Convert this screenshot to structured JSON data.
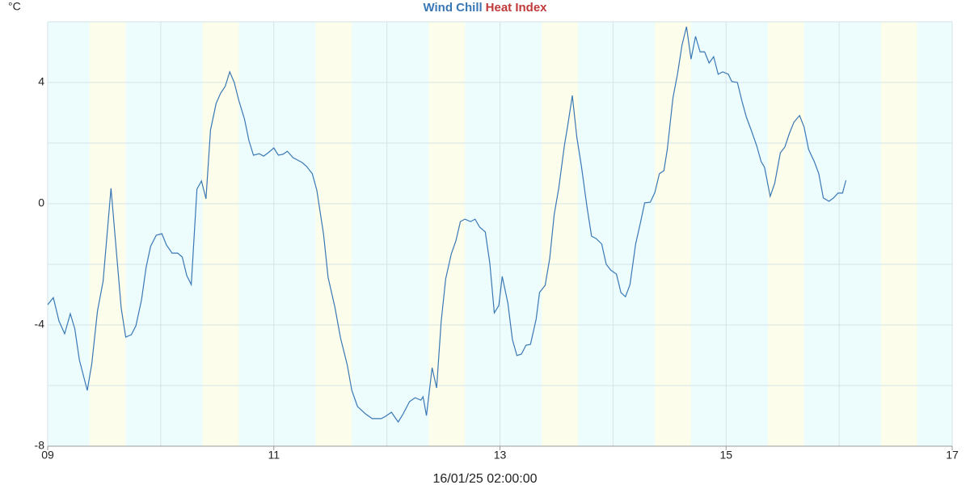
{
  "chart_data": {
    "type": "line",
    "legend": [
      {
        "name": "Wind Chill",
        "color": "#3a78b5"
      },
      {
        "name": "Heat Index",
        "color": "#c0393b"
      }
    ],
    "y_unit": "°C",
    "x_label": "16/01/25 02:00:00",
    "xlim": [
      9,
      17
    ],
    "xticks": [
      {
        "value": 9,
        "label": "09"
      },
      11,
      13,
      15,
      17
    ],
    "x_minor_grid": [
      10,
      12,
      14,
      16
    ],
    "ylim": [
      -8,
      6
    ],
    "yticks": [
      -8,
      -4,
      0,
      4
    ],
    "y_minor_grid": [
      -6,
      -2,
      2,
      6
    ],
    "grid": true,
    "background": "#edfdfd",
    "bands": [
      {
        "start": 9.37,
        "end": 9.69
      },
      {
        "start": 10.37,
        "end": 10.69
      },
      {
        "start": 11.37,
        "end": 11.69
      },
      {
        "start": 12.37,
        "end": 12.69
      },
      {
        "start": 13.37,
        "end": 13.69
      },
      {
        "start": 14.37,
        "end": 14.69
      },
      {
        "start": 15.37,
        "end": 15.69
      },
      {
        "start": 16.37,
        "end": 16.69
      }
    ],
    "band_color": "#fdfdeb",
    "x": [
      9.0,
      9.05,
      9.1,
      9.15,
      9.2,
      9.24,
      9.28,
      9.35,
      9.39,
      9.44,
      9.49,
      9.56,
      9.65,
      9.69,
      9.74,
      9.78,
      9.83,
      9.87,
      9.91,
      9.96,
      10.01,
      10.05,
      10.1,
      10.15,
      10.19,
      10.23,
      10.27,
      10.32,
      10.36,
      10.4,
      10.44,
      10.49,
      10.53,
      10.57,
      10.61,
      10.65,
      10.69,
      10.74,
      10.78,
      10.82,
      10.87,
      10.91,
      10.95,
      11.0,
      11.04,
      11.08,
      11.12,
      11.17,
      11.21,
      11.25,
      11.29,
      11.34,
      11.38,
      11.44,
      11.48,
      11.54,
      11.59,
      11.65,
      11.69,
      11.74,
      11.81,
      11.87,
      11.95,
      11.99,
      12.04,
      12.1,
      12.14,
      12.2,
      12.25,
      12.3,
      12.32,
      12.35,
      12.4,
      12.44,
      12.48,
      12.52,
      12.57,
      12.61,
      12.65,
      12.69,
      12.74,
      12.78,
      12.82,
      12.87,
      12.91,
      12.95,
      12.99,
      13.02,
      13.07,
      13.11,
      13.15,
      13.19,
      13.23,
      13.27,
      13.32,
      13.35,
      13.4,
      13.44,
      13.48,
      13.52,
      13.57,
      13.6,
      13.64,
      13.68,
      13.72,
      13.77,
      13.81,
      13.85,
      13.9,
      13.94,
      13.98,
      14.03,
      14.07,
      14.11,
      14.15,
      14.2,
      14.24,
      14.28,
      14.33,
      14.37,
      14.41,
      14.45,
      14.48,
      14.53,
      14.57,
      14.61,
      14.65,
      14.69,
      14.73,
      14.77,
      14.81,
      14.85,
      14.89,
      14.93,
      14.97,
      15.02,
      15.05,
      15.1,
      15.14,
      15.18,
      15.22,
      15.27,
      15.31,
      15.34,
      15.39,
      15.43,
      15.48,
      15.52,
      15.56,
      15.6,
      15.65,
      15.69,
      15.73,
      15.78,
      15.82,
      15.86,
      15.91,
      15.95,
      15.99,
      16.03,
      16.06
    ],
    "series": [
      {
        "name": "Wind Chill",
        "color": "#3a78b5",
        "values": [
          -3.33,
          -3.1,
          -3.87,
          -4.29,
          -3.63,
          -4.13,
          -5.15,
          -6.16,
          -5.28,
          -3.55,
          -2.56,
          0.51,
          -3.44,
          -4.4,
          -4.32,
          -4.03,
          -3.17,
          -2.11,
          -1.41,
          -1.04,
          -0.99,
          -1.36,
          -1.63,
          -1.63,
          -1.76,
          -2.37,
          -2.67,
          0.48,
          0.75,
          0.16,
          2.43,
          3.31,
          3.65,
          3.87,
          4.35,
          4,
          3.41,
          2.8,
          2.08,
          1.6,
          1.65,
          1.57,
          1.68,
          1.84,
          1.6,
          1.63,
          1.73,
          1.52,
          1.44,
          1.36,
          1.23,
          0.99,
          0.45,
          -1.01,
          -2.43,
          -3.41,
          -4.43,
          -5.33,
          -6.16,
          -6.69,
          -6.93,
          -7.09,
          -7.09,
          -7.01,
          -6.88,
          -7.2,
          -6.96,
          -6.53,
          -6.4,
          -6.48,
          -6.37,
          -6.99,
          -5.41,
          -6.08,
          -3.89,
          -2.48,
          -1.65,
          -1.23,
          -0.59,
          -0.51,
          -0.59,
          -0.51,
          -0.77,
          -0.93,
          -1.95,
          -3.6,
          -3.36,
          -2.4,
          -3.28,
          -4.48,
          -5.01,
          -4.96,
          -4.67,
          -4.64,
          -3.81,
          -2.93,
          -2.69,
          -1.81,
          -0.35,
          0.51,
          1.92,
          2.59,
          3.57,
          2.19,
          1.25,
          -0.11,
          -1.07,
          -1.15,
          -1.33,
          -2,
          -2.19,
          -2.32,
          -2.93,
          -3.07,
          -2.67,
          -1.33,
          -0.67,
          0.03,
          0.05,
          0.37,
          0.99,
          1.09,
          1.79,
          3.49,
          4.27,
          5.23,
          5.84,
          4.77,
          5.52,
          5.01,
          5.01,
          4.64,
          4.85,
          4.27,
          4.35,
          4.27,
          4.03,
          4,
          3.39,
          2.85,
          2.45,
          1.92,
          1.39,
          1.2,
          0.24,
          0.67,
          1.68,
          1.87,
          2.32,
          2.69,
          2.91,
          2.53,
          1.79,
          1.39,
          0.99,
          0.19,
          0.08,
          0.19,
          0.35,
          0.35,
          0.77
        ]
      }
    ]
  }
}
